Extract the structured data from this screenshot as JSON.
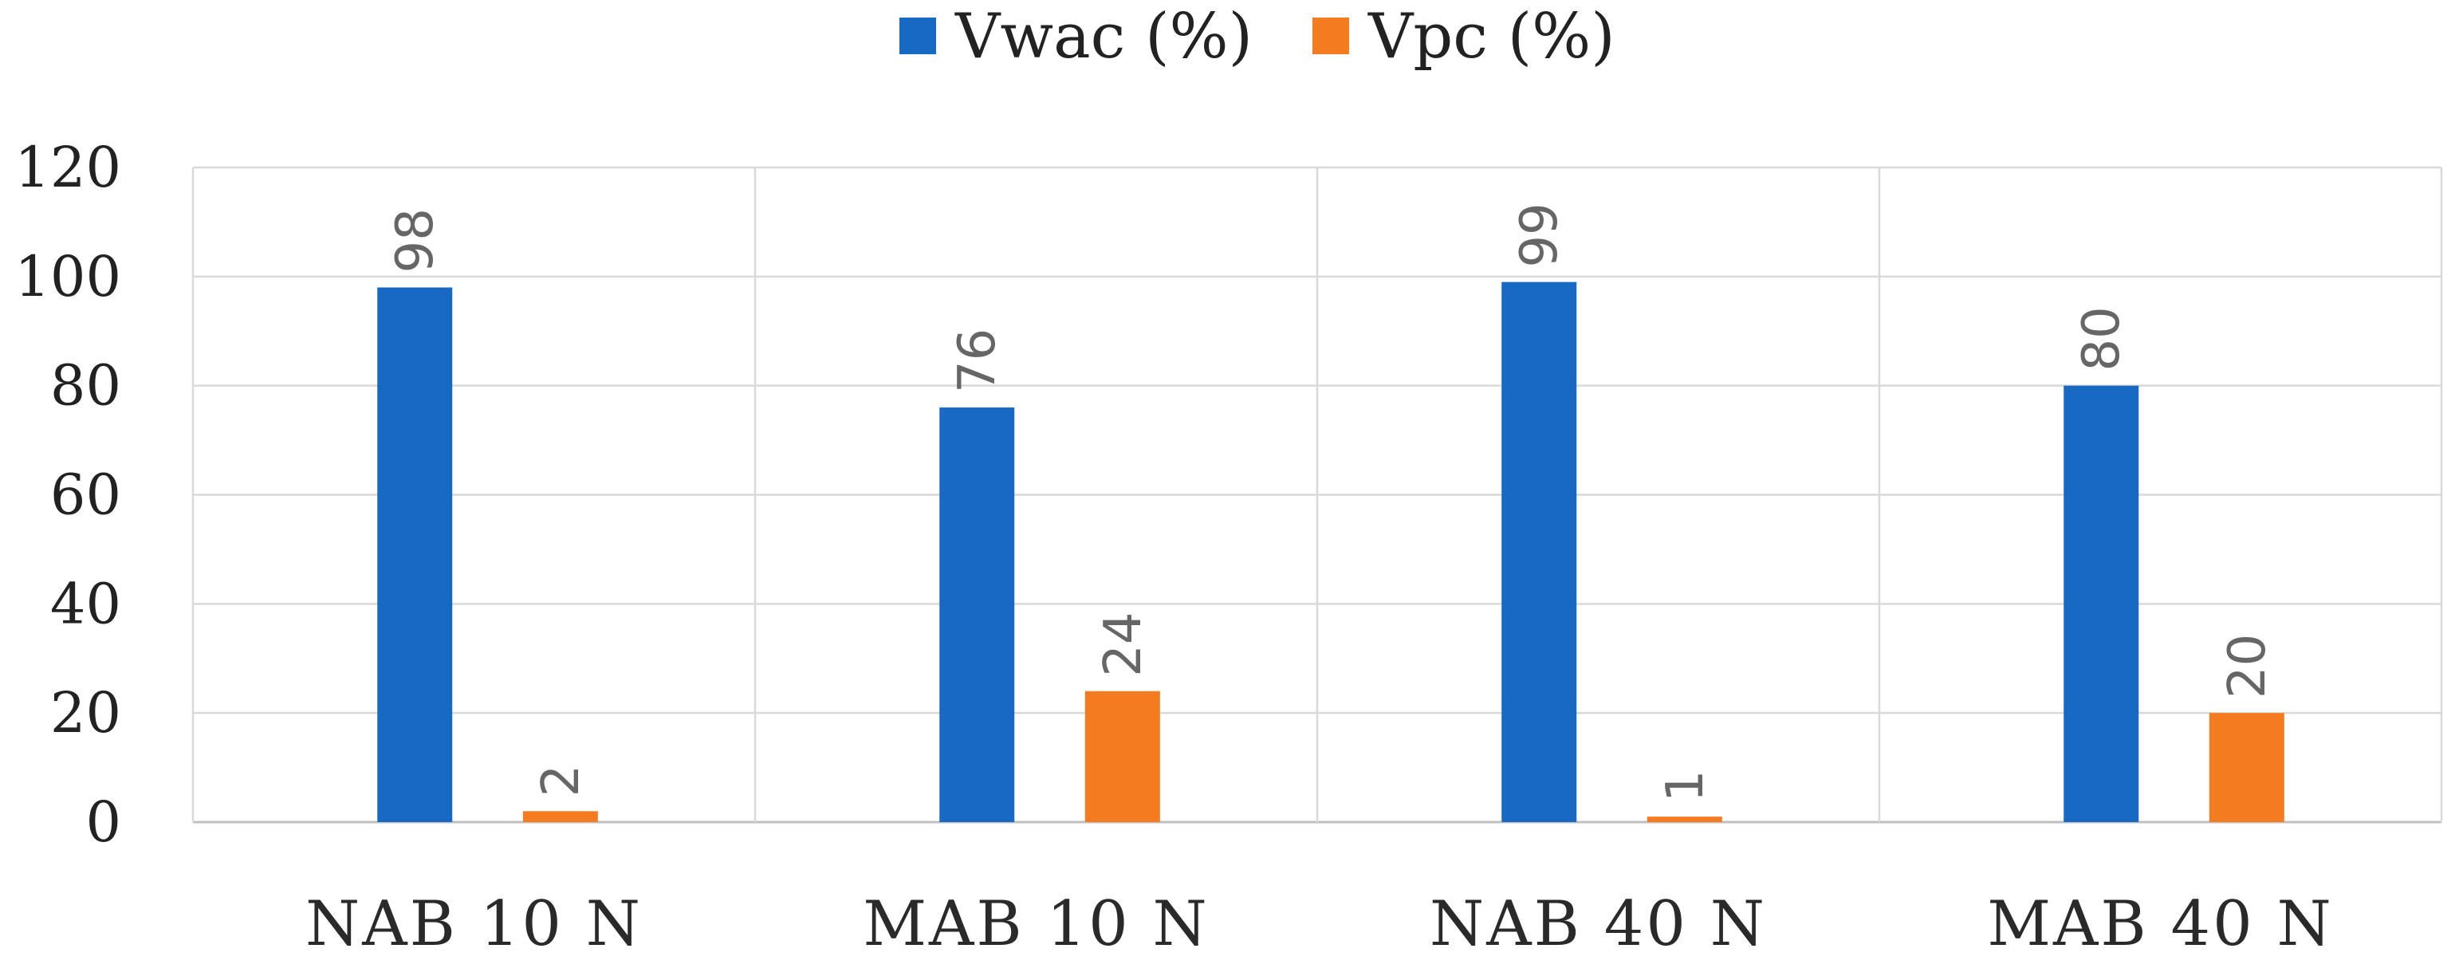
{
  "chart_data": {
    "type": "bar",
    "title": "",
    "xlabel": "",
    "ylabel": "",
    "categories": [
      "NAB 10 N",
      "MAB 10 N",
      "NAB 40 N",
      "MAB 40 N"
    ],
    "series": [
      {
        "name": "Vwac (%)",
        "color": "#1769c4",
        "values": [
          98,
          76,
          99,
          80
        ]
      },
      {
        "name": "Vpc (%)",
        "color": "#f47b20",
        "values": [
          2,
          24,
          1,
          20
        ]
      }
    ],
    "ylim": [
      0,
      120
    ],
    "yticks": [
      "0",
      "20",
      "40",
      "60",
      "80",
      "100",
      "120"
    ],
    "grid": true,
    "legend_position": "top-center",
    "data_labels_rotated": true
  }
}
